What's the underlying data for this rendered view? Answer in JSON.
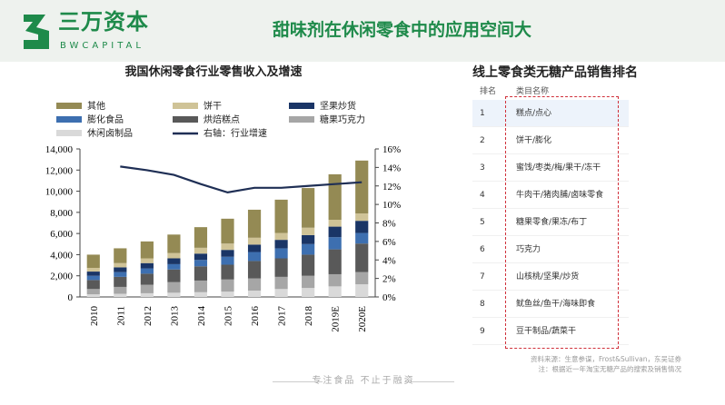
{
  "header": {
    "brand": "三万资本",
    "brand_en": "BWCAPITAL",
    "title": "甜味剂在休闲零食中的应用空间大"
  },
  "colors": {
    "brand_green": "#1e8a4a",
    "highlight": "#d0303a"
  },
  "chart_data": {
    "type": "bar",
    "title": "我国休闲零食行业零售收入及增速",
    "stacked": true,
    "categories": [
      "2010",
      "2011",
      "2012",
      "2013",
      "2014",
      "2015",
      "2016",
      "2017",
      "2018",
      "2019E",
      "2020E"
    ],
    "ylim": [
      0,
      14000
    ],
    "yticks": [
      "0",
      "2,000",
      "4,000",
      "6,000",
      "8,000",
      "10,000",
      "12,000",
      "14,000"
    ],
    "y2lim": [
      0,
      16
    ],
    "y2ticks": [
      "0%",
      "2%",
      "4%",
      "6%",
      "8%",
      "10%",
      "12%",
      "14%",
      "16%"
    ],
    "legend_position": "top",
    "series": [
      {
        "name": "休闲卤制品",
        "color": "#d9d9d9",
        "values": [
          250,
          300,
          350,
          400,
          450,
          500,
          600,
          750,
          850,
          1000,
          1200
        ]
      },
      {
        "name": "糖果巧克力",
        "color": "#a6a6a6",
        "values": [
          500,
          650,
          800,
          1000,
          1100,
          1150,
          1150,
          1150,
          1150,
          1150,
          1150
        ]
      },
      {
        "name": "烘焙糕点",
        "color": "#595959",
        "values": [
          850,
          950,
          1050,
          1200,
          1350,
          1400,
          1650,
          1750,
          2000,
          2350,
          2700
        ]
      },
      {
        "name": "膨化食品",
        "color": "#3d6fb0",
        "values": [
          400,
          450,
          500,
          500,
          600,
          750,
          850,
          950,
          1000,
          1150,
          1000
        ]
      },
      {
        "name": "坚果炒货",
        "color": "#1a3566",
        "values": [
          400,
          450,
          500,
          550,
          600,
          650,
          700,
          800,
          850,
          1000,
          1150
        ]
      },
      {
        "name": "饼干",
        "color": "#cfc397",
        "values": [
          350,
          400,
          450,
          500,
          550,
          600,
          650,
          650,
          700,
          650,
          700
        ]
      },
      {
        "name": "其他",
        "color": "#948a54",
        "values": [
          1250,
          1400,
          1600,
          1750,
          1950,
          2350,
          2650,
          3150,
          3750,
          4300,
          5000
        ]
      }
    ],
    "line": {
      "name": "右轴：行业增速",
      "color": "#1f2f55",
      "values": [
        null,
        14.1,
        13.7,
        13.2,
        12.2,
        11.3,
        11.8,
        11.8,
        12.0,
        12.2,
        12.4
      ]
    }
  },
  "table": {
    "title": "线上零食类无糖产品销售排名",
    "headers": [
      "排名",
      "类目名称"
    ],
    "rows": [
      [
        "1",
        "糕点/点心"
      ],
      [
        "2",
        "饼干/膨化"
      ],
      [
        "3",
        "蜜饯/枣类/梅/果干/冻干"
      ],
      [
        "4",
        "牛肉干/猪肉脯/卤味零食"
      ],
      [
        "5",
        "糖果零食/果冻/布丁"
      ],
      [
        "6",
        "巧克力"
      ],
      [
        "7",
        "山核桃/坚果/炒货"
      ],
      [
        "8",
        "鱿鱼丝/鱼干/海味即食"
      ],
      [
        "9",
        "豆干制品/蔬菜干"
      ]
    ]
  },
  "source": {
    "line1": "资料来源：生意参谋，Frost&Sullivan，东吴证券",
    "line2": "注：根据近一年淘宝无糖产品的搜索及销售情况"
  },
  "footer": "专注食品 不止于融资"
}
